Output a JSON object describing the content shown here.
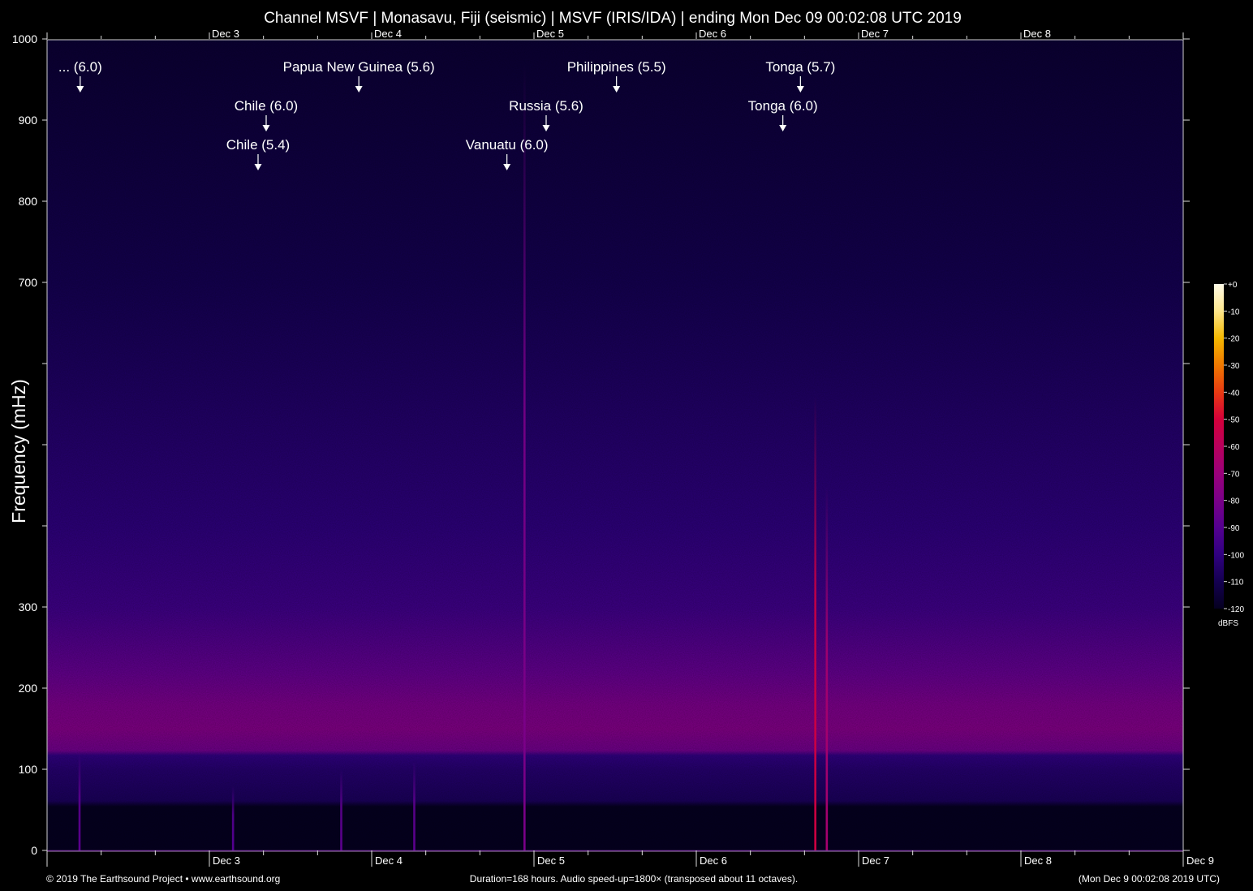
{
  "chart_data": {
    "type": "heatmap",
    "title": "Channel MSVF | Monasavu, Fiji (seismic) | MSVF (IRIS/IDA) | ending Mon Dec 09 00:02:08 UTC 2019",
    "ylabel": "Frequency (mHz)",
    "ylim": [
      0,
      1000
    ],
    "y_ticks": [
      {
        "value": 0,
        "label": "0"
      },
      {
        "value": 100,
        "label": "100"
      },
      {
        "value": 200,
        "label": "200"
      },
      {
        "value": 300,
        "label": "300"
      },
      {
        "value": 400,
        "label": ""
      },
      {
        "value": 500,
        "label": ""
      },
      {
        "value": 600,
        "label": ""
      },
      {
        "value": 700,
        "label": "700"
      },
      {
        "value": 800,
        "label": "800"
      },
      {
        "value": 900,
        "label": "900"
      },
      {
        "value": 1000,
        "label": "1000"
      }
    ],
    "x_range_hours": [
      0,
      168
    ],
    "top_date_labels": [
      {
        "label": "Dec  3",
        "hour": 24
      },
      {
        "label": "Dec  4",
        "hour": 48
      },
      {
        "label": "Dec  5",
        "hour": 72
      },
      {
        "label": "Dec  6",
        "hour": 96
      },
      {
        "label": "Dec  7",
        "hour": 120
      },
      {
        "label": "Dec  8",
        "hour": 144
      }
    ],
    "bottom_date_labels": [
      {
        "label": "Dec  3",
        "hour": 24
      },
      {
        "label": "Dec  4",
        "hour": 48
      },
      {
        "label": "Dec  5",
        "hour": 72
      },
      {
        "label": "Dec  6",
        "hour": 96
      },
      {
        "label": "Dec  7",
        "hour": 120
      },
      {
        "label": "Dec  8",
        "hour": 144
      },
      {
        "label": "Dec  9",
        "hour": 168
      }
    ],
    "events": [
      {
        "label": "... (6.0)",
        "hour": 4.9
      },
      {
        "label": "Papua New Guinea (5.6)",
        "hour": 46.1
      },
      {
        "label": "Philippines (5.5)",
        "hour": 84.2
      },
      {
        "label": "Tonga (5.7)",
        "hour": 111.4
      },
      {
        "label": "Chile (6.0)",
        "hour": 32.4
      },
      {
        "label": "Russia (5.6)",
        "hour": 73.8
      },
      {
        "label": "Tonga (6.0)",
        "hour": 108.8
      },
      {
        "label": "Chile (5.4)",
        "hour": 31.2
      },
      {
        "label": "Vanuatu (6.0)",
        "hour": 68.0
      }
    ],
    "colorbar": {
      "unit": "dBFS",
      "ticks": [
        "+0",
        "-10",
        "-20",
        "-30",
        "-40",
        "-50",
        "-60",
        "-70",
        "-80",
        "-90",
        "-100",
        "-110",
        "-120"
      ],
      "colors": [
        "#fffbe8",
        "#fde68c",
        "#f5b800",
        "#f07800",
        "#e83a12",
        "#d4003a",
        "#b8005c",
        "#9a007a",
        "#7a0088",
        "#540090",
        "#300080",
        "#140050",
        "#050020"
      ]
    },
    "noise_profile_mhz_db": [
      [
        0,
        -123
      ],
      [
        55,
        -121
      ],
      [
        62,
        -108
      ],
      [
        100,
        -104
      ],
      [
        118,
        -100
      ],
      [
        124,
        -83
      ],
      [
        150,
        -78
      ],
      [
        180,
        -80
      ],
      [
        220,
        -86
      ],
      [
        300,
        -96
      ],
      [
        400,
        -101
      ],
      [
        500,
        -104
      ],
      [
        600,
        -107
      ],
      [
        700,
        -110
      ],
      [
        800,
        -112
      ],
      [
        1000,
        -116
      ]
    ],
    "event_streaks": [
      {
        "hour": 70.6,
        "top_mhz": 970,
        "level_db": -80
      },
      {
        "hour": 113.6,
        "top_mhz": 560,
        "level_db": -52
      },
      {
        "hour": 115.3,
        "top_mhz": 450,
        "level_db": -66
      },
      {
        "hour": 4.8,
        "top_mhz": 120,
        "level_db": -88
      },
      {
        "hour": 27.5,
        "top_mhz": 80,
        "level_db": -90
      },
      {
        "hour": 54.3,
        "top_mhz": 110,
        "level_db": -88
      },
      {
        "hour": 43.5,
        "top_mhz": 100,
        "level_db": -88
      }
    ]
  },
  "footer": {
    "copyright": "© 2019 The Earthsound Project • www.earthsound.org",
    "duration": "Duration=168 hours. Audio speed-up=1800× (transposed about 11 octaves).",
    "end_time": "(Mon Dec  9 00:02:08 2019 UTC)"
  }
}
